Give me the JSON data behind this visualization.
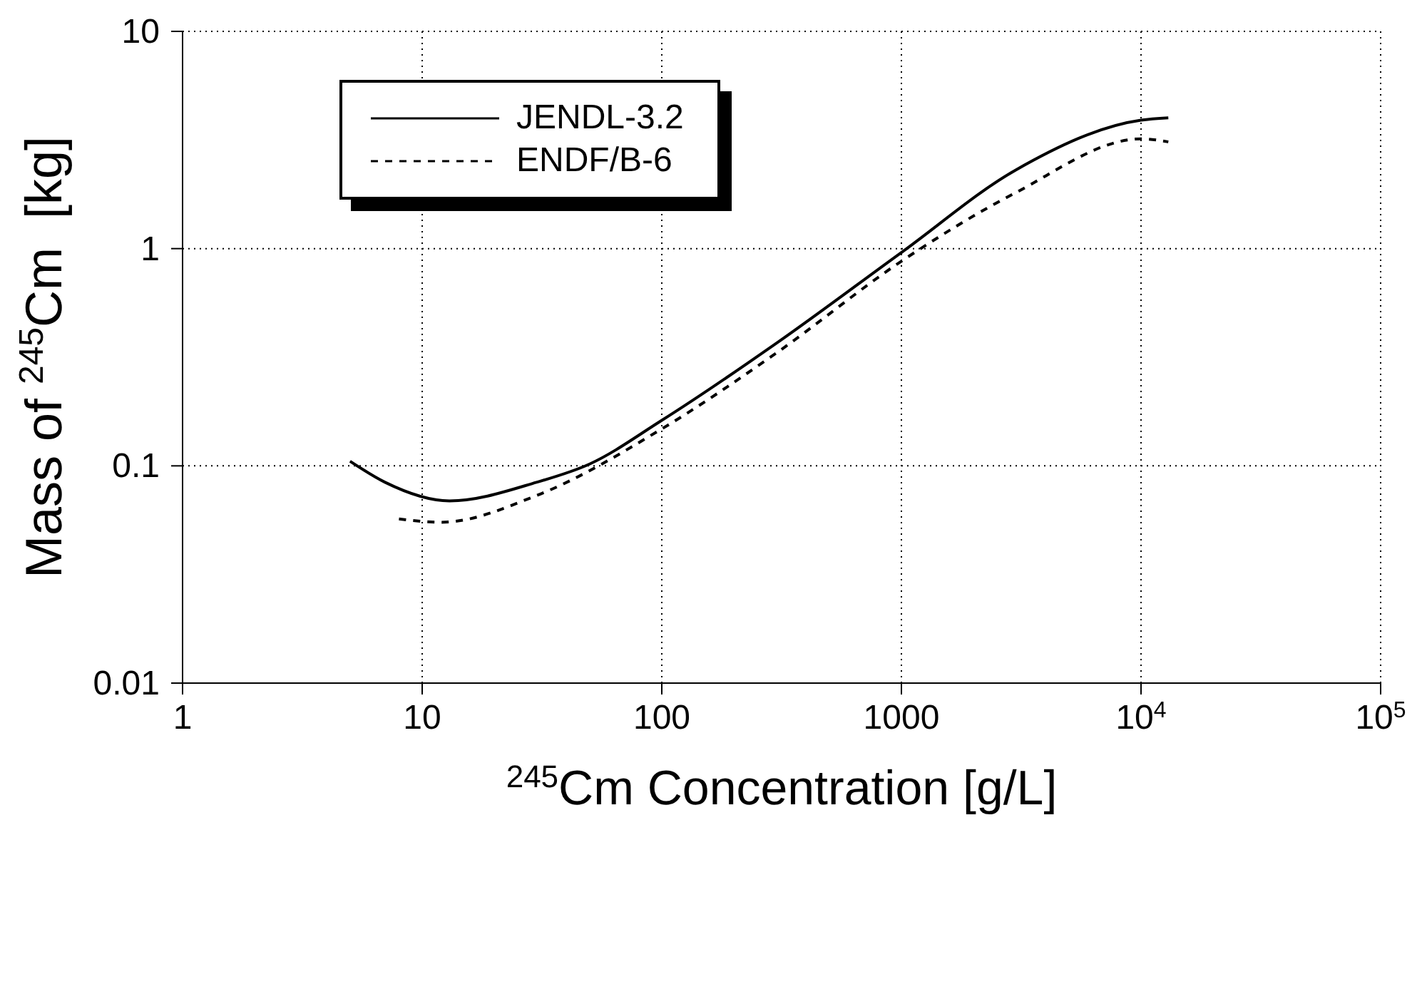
{
  "chart_data": {
    "type": "line",
    "xlabel": "$^{245}$Cm Concentration [g/L]",
    "ylabel": "Mass of $^{245}$Cm  [kg]",
    "log": "xy",
    "grid": true,
    "legend": "top left",
    "marker": "none",
    "xlim": [
      1,
      100000
    ],
    "xticks": [
      1,
      10,
      100,
      1000,
      {
        "value": 10000,
        "label": "10$^{4}$"
      },
      {
        "value": 100000,
        "label": "10$^{5}$"
      }
    ],
    "ylim": [
      0.01,
      10
    ],
    "yticks": [
      0.01,
      0.1,
      1,
      10
    ],
    "series": [
      {
        "name": "JENDL-3.2",
        "color": "#000000",
        "line_style": "solid",
        "x": [
          5,
          7,
          13,
          30,
          50,
          100,
          300,
          1000,
          3000,
          10000,
          13000
        ],
        "values": [
          0.105,
          0.084,
          0.069,
          0.084,
          0.102,
          0.162,
          0.366,
          0.96,
          2.3,
          3.9,
          4.0
        ]
      },
      {
        "name": "ENDF/B-6",
        "color": "#000000",
        "line_style": "dashed",
        "x": [
          8,
          12,
          30,
          100,
          300,
          1000,
          3000,
          10000,
          13000
        ],
        "values": [
          0.057,
          0.055,
          0.073,
          0.148,
          0.33,
          0.875,
          1.81,
          3.2,
          3.1
        ]
      }
    ]
  }
}
